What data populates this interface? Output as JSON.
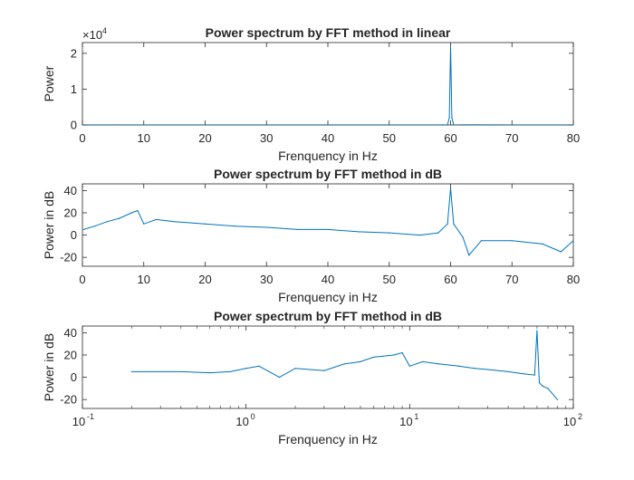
{
  "chart_data": [
    {
      "type": "line",
      "title": "Power spectrum by FFT method in linear",
      "xlabel": "Frenquency in Hz",
      "ylabel": "Power",
      "xscale": "linear",
      "xlim": [
        0,
        80
      ],
      "ylim": [
        0,
        2.3
      ],
      "y_exponent_label": "×10",
      "y_exponent": "4",
      "xticks": [
        "0",
        "10",
        "20",
        "30",
        "40",
        "50",
        "60",
        "70",
        "80"
      ],
      "yticks": [
        "0",
        "1",
        "2"
      ],
      "xtick_values": [
        0,
        10,
        20,
        30,
        40,
        50,
        60,
        70,
        80
      ],
      "ytick_values": [
        0,
        1,
        2
      ],
      "series_color": "#0072BD",
      "x": [
        0,
        5,
        10,
        20,
        30,
        40,
        50,
        59.5,
        59.8,
        60,
        60.2,
        60.5,
        70,
        80
      ],
      "y": [
        0.002,
        0.002,
        0.003,
        0.002,
        0.002,
        0.002,
        0.002,
        0.005,
        0.2,
        2.2,
        0.2,
        0.005,
        0.002,
        0.002
      ],
      "annotation": "peak near 60 Hz ≈ 2.2×10^4"
    },
    {
      "type": "line",
      "title": "Power spectrum by FFT method in dB",
      "xlabel": "Frenquency in Hz",
      "ylabel": "Power  in dB",
      "xscale": "linear",
      "xlim": [
        0,
        80
      ],
      "ylim": [
        -28,
        46
      ],
      "xticks": [
        "0",
        "10",
        "20",
        "30",
        "40",
        "50",
        "60",
        "70",
        "80"
      ],
      "yticks": [
        "-20",
        "0",
        "20",
        "40"
      ],
      "xtick_values": [
        0,
        10,
        20,
        30,
        40,
        50,
        60,
        70,
        80
      ],
      "ytick_values": [
        -20,
        0,
        20,
        40
      ],
      "series_color": "#0072BD",
      "x": [
        0.2,
        2,
        4,
        6,
        8,
        9,
        10,
        12,
        15,
        20,
        25,
        30,
        35,
        40,
        45,
        50,
        55,
        58,
        59.5,
        60,
        60.5,
        62,
        63,
        65,
        70,
        75,
        78,
        80
      ],
      "y": [
        5,
        8,
        12,
        15,
        20,
        22,
        10,
        14,
        12,
        10,
        8,
        7,
        5,
        5,
        3,
        2,
        0,
        2,
        10,
        42,
        10,
        -2,
        -18,
        -5,
        -5,
        -8,
        -15,
        -5
      ]
    },
    {
      "type": "line",
      "title": "Power spectrum by FFT method in dB",
      "xlabel": "Frenquency in Hz",
      "ylabel": "Power  in dB",
      "xscale": "log",
      "xlim": [
        0.1,
        100
      ],
      "ylim": [
        -28,
        46
      ],
      "xticks_base": [
        "10",
        "10",
        "10",
        "10"
      ],
      "xticks_exp": [
        "-1",
        "0",
        "1",
        "2"
      ],
      "xtick_values": [
        0.1,
        1,
        10,
        100
      ],
      "yticks": [
        "-20",
        "0",
        "20",
        "40"
      ],
      "ytick_values": [
        -20,
        0,
        20,
        40
      ],
      "series_color": "#0072BD",
      "x": [
        0.2,
        0.4,
        0.6,
        0.8,
        1.0,
        1.2,
        1.6,
        2,
        3,
        4,
        5,
        6,
        8,
        9,
        10,
        12,
        15,
        20,
        25,
        30,
        40,
        50,
        58,
        60,
        62,
        65,
        70,
        80
      ],
      "y": [
        5,
        5,
        4,
        5,
        8,
        10,
        0,
        8,
        6,
        12,
        14,
        18,
        20,
        22,
        10,
        14,
        12,
        10,
        8,
        7,
        5,
        3,
        2,
        42,
        -5,
        -8,
        -10,
        -20
      ]
    }
  ]
}
